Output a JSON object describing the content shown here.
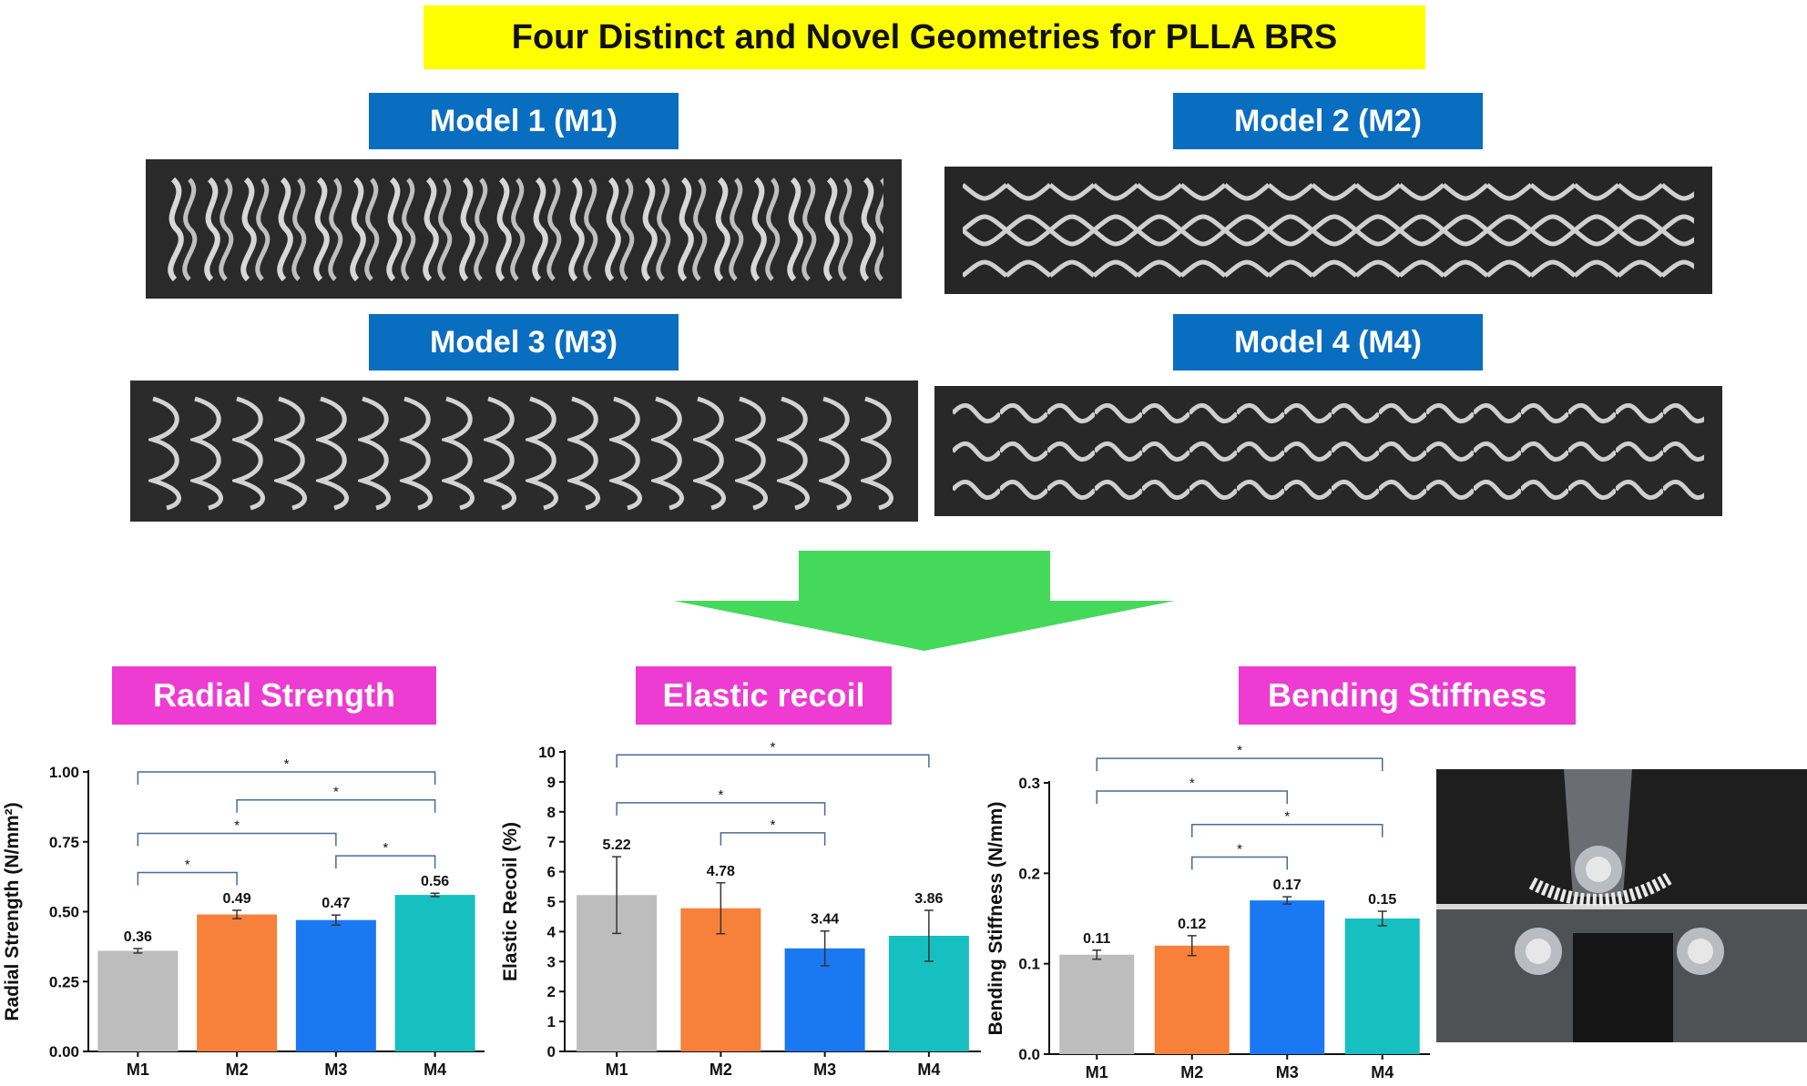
{
  "header": {
    "title": "Four Distinct and Novel Geometries for PLLA BRS"
  },
  "models": [
    {
      "label": "Model 1 (M1)"
    },
    {
      "label": "Model 2 (M2)"
    },
    {
      "label": "Model 3 (M3)"
    },
    {
      "label": "Model 4 (M4)"
    }
  ],
  "sections": {
    "radial": "Radial Strength",
    "recoil": "Elastic recoil",
    "bending": "Bending Stiffness"
  },
  "colors": {
    "title_bg": "#ffff00",
    "model_label_bg": "#0a6ec0",
    "section_bg": "#ee3bd2",
    "arrow": "#44d95a",
    "bracket": "#4a6a9a"
  },
  "chart_data": [
    {
      "type": "bar",
      "categories": [
        "M1",
        "M2",
        "M3",
        "M4"
      ],
      "values": [
        0.36,
        0.49,
        0.47,
        0.56
      ],
      "errors": [
        0.008,
        0.015,
        0.018,
        0.006
      ],
      "value_labels": [
        "0.36",
        "0.49",
        "0.47",
        "0.56"
      ],
      "bar_colors": [
        "#bdbdbd",
        "#f7813a",
        "#1a78f2",
        "#16c0c0"
      ],
      "ylabel": "Radial Strength (N/mm²)",
      "ylim": [
        0,
        1.0
      ],
      "yticks": [
        0.0,
        0.25,
        0.5,
        0.75,
        1.0
      ],
      "ytick_labels": [
        "0.00",
        "0.25",
        "0.50",
        "0.75",
        "1.00"
      ],
      "significance": [
        {
          "from": "M1",
          "to": "M4",
          "level": 1.0,
          "label": "*"
        },
        {
          "from": "M2",
          "to": "M4",
          "level": 0.9,
          "label": "*"
        },
        {
          "from": "M1",
          "to": "M3",
          "level": 0.78,
          "label": "*"
        },
        {
          "from": "M3",
          "to": "M4",
          "level": 0.7,
          "label": "*"
        },
        {
          "from": "M1",
          "to": "M2",
          "level": 0.64,
          "label": "*"
        }
      ]
    },
    {
      "type": "bar",
      "categories": [
        "M1",
        "M2",
        "M3",
        "M4"
      ],
      "values": [
        5.22,
        4.78,
        3.44,
        3.86
      ],
      "errors": [
        1.28,
        0.85,
        0.58,
        0.85
      ],
      "value_labels": [
        "5.22",
        "4.78",
        "3.44",
        "3.86"
      ],
      "bar_colors": [
        "#bdbdbd",
        "#f7813a",
        "#1a78f2",
        "#16c0c0"
      ],
      "ylabel": "Elastic Recoil (%)",
      "ylim": [
        0,
        10
      ],
      "yticks": [
        0,
        1,
        2,
        3,
        4,
        5,
        6,
        7,
        8,
        9,
        10
      ],
      "ytick_labels": [
        "0",
        "1",
        "2",
        "3",
        "4",
        "5",
        "6",
        "7",
        "8",
        "9",
        "10"
      ],
      "significance": [
        {
          "from": "M1",
          "to": "M4",
          "level": 9.9,
          "label": "*"
        },
        {
          "from": "M1",
          "to": "M3",
          "level": 8.3,
          "label": "*"
        },
        {
          "from": "M2",
          "to": "M3",
          "level": 7.3,
          "label": "*"
        }
      ]
    },
    {
      "type": "bar",
      "categories": [
        "M1",
        "M2",
        "M3",
        "M4"
      ],
      "values": [
        0.11,
        0.12,
        0.17,
        0.15
      ],
      "errors": [
        0.005,
        0.011,
        0.004,
        0.008
      ],
      "value_labels": [
        "0.11",
        "0.12",
        "0.17",
        "0.15"
      ],
      "bar_colors": [
        "#bdbdbd",
        "#f7813a",
        "#1a78f2",
        "#16c0c0"
      ],
      "ylabel": "Bending Stiffness (N/mm)",
      "ylim": [
        0,
        0.3
      ],
      "yticks": [
        0.0,
        0.1,
        0.2,
        0.3
      ],
      "ytick_labels": [
        "0.0",
        "0.1",
        "0.2",
        "0.3"
      ],
      "significance": [
        {
          "from": "M1",
          "to": "M4",
          "level": 0.327,
          "label": "*"
        },
        {
          "from": "M1",
          "to": "M3",
          "level": 0.291,
          "label": "*"
        },
        {
          "from": "M2",
          "to": "M4",
          "level": 0.254,
          "label": "*"
        },
        {
          "from": "M2",
          "to": "M3",
          "level": 0.218,
          "label": "*"
        }
      ]
    }
  ]
}
